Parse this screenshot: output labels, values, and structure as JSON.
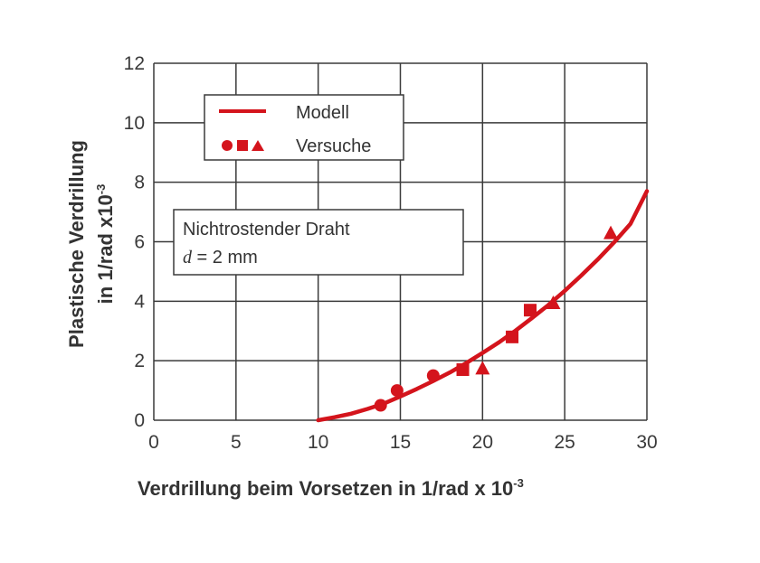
{
  "chart_data": {
    "type": "scatter",
    "title": "",
    "xlabel": "Verdrillung beim Vorsetzen in 1/rad x 10",
    "xlabel_sup": "-3",
    "ylabel_line1": "Plastische Verdrillung",
    "ylabel_line2": "in 1/rad x10",
    "ylabel_sup": "-3",
    "xlim": [
      0,
      30
    ],
    "ylim": [
      0,
      12
    ],
    "x_ticks": [
      0,
      5,
      10,
      15,
      20,
      25,
      30
    ],
    "y_ticks": [
      0,
      2,
      4,
      6,
      8,
      10,
      12
    ],
    "x_tick_labels": [
      "0",
      "5",
      "10",
      "15",
      "20",
      "25",
      "30"
    ],
    "y_tick_labels": [
      "0",
      "2",
      "4",
      "6",
      "8",
      "10",
      "12"
    ],
    "grid": true,
    "colors": {
      "series": "#d4141c",
      "grid": "#3a3a3a",
      "text": "#333333"
    },
    "legend": {
      "placement": "top-left",
      "entries": [
        {
          "symbol": "line",
          "label": "Modell"
        },
        {
          "symbol": "circle-square-triangle",
          "label": "Versuche"
        }
      ]
    },
    "annotation": {
      "line1": "Nichtrostender Draht",
      "line2_var": "d",
      "line2_rest": " = 2 mm"
    },
    "series": [
      {
        "name": "Modell",
        "kind": "line",
        "x": [
          10,
          11,
          12,
          13,
          14,
          15,
          16,
          17,
          18,
          19,
          20,
          21,
          22,
          23,
          24,
          25,
          26,
          27,
          28,
          29,
          30
        ],
        "y": [
          0,
          0.1,
          0.22,
          0.38,
          0.56,
          0.8,
          1.05,
          1.32,
          1.6,
          1.92,
          2.26,
          2.62,
          3.01,
          3.43,
          3.87,
          4.35,
          4.86,
          5.4,
          5.98,
          6.6,
          7.7
        ]
      },
      {
        "name": "Versuche",
        "kind": "points",
        "points": [
          {
            "x": 13.8,
            "y": 0.5,
            "marker": "circle"
          },
          {
            "x": 14.8,
            "y": 1.0,
            "marker": "circle"
          },
          {
            "x": 17.0,
            "y": 1.5,
            "marker": "circle"
          },
          {
            "x": 18.8,
            "y": 1.7,
            "marker": "square"
          },
          {
            "x": 20.0,
            "y": 1.75,
            "marker": "triangle"
          },
          {
            "x": 21.8,
            "y": 2.8,
            "marker": "square"
          },
          {
            "x": 22.9,
            "y": 3.7,
            "marker": "square"
          },
          {
            "x": 24.3,
            "y": 3.95,
            "marker": "triangle"
          },
          {
            "x": 27.8,
            "y": 6.3,
            "marker": "triangle"
          }
        ]
      }
    ]
  }
}
